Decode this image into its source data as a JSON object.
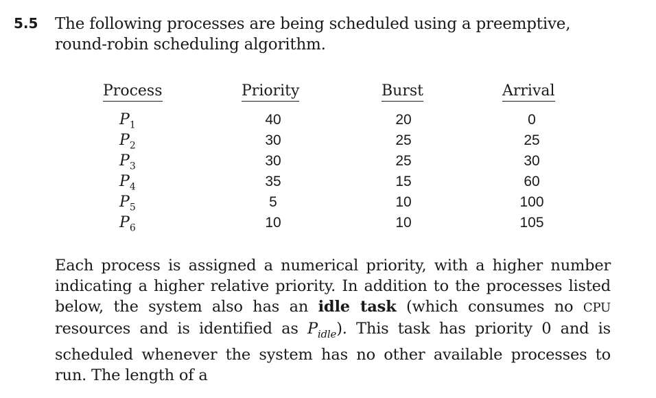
{
  "exercise_number": "5.5",
  "intro_text": "The following processes are being scheduled using a preemptive, round-robin scheduling algorithm.",
  "table": {
    "headers": {
      "process": "Process",
      "priority": "Priority",
      "burst": "Burst",
      "arrival": "Arrival"
    },
    "process_symbol": "P",
    "rows": [
      {
        "idx": "1",
        "priority": "40",
        "burst": "20",
        "arrival": "0"
      },
      {
        "idx": "2",
        "priority": "30",
        "burst": "25",
        "arrival": "25"
      },
      {
        "idx": "3",
        "priority": "30",
        "burst": "25",
        "arrival": "30"
      },
      {
        "idx": "4",
        "priority": "35",
        "burst": "15",
        "arrival": "60"
      },
      {
        "idx": "5",
        "priority": "5",
        "burst": "10",
        "arrival": "100"
      },
      {
        "idx": "6",
        "priority": "10",
        "burst": "10",
        "arrival": "105"
      }
    ]
  },
  "paragraph": {
    "part1": "Each process is assigned a numerical priority, with a higher number indicating a higher relative priority. In addition to the processes listed below, the system also has an ",
    "idle_bold": "idle task",
    "part2": " (which consumes no ",
    "cpu": "CPU",
    "part3": " resources and is identified as ",
    "pidle_symbol": "P",
    "pidle_sub": "idle",
    "part4": "). This task has priority 0 and is scheduled whenever the system has no other available processes to run. The length of a"
  }
}
